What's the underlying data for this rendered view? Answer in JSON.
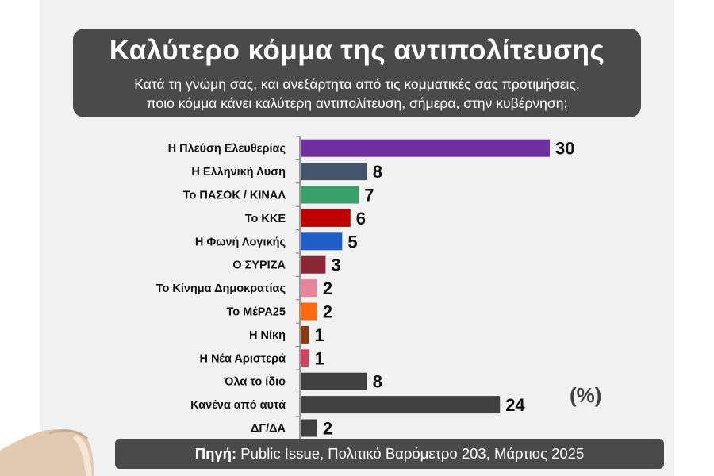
{
  "header": {
    "title": "Καλύτερο κόμμα της αντιπολίτευσης",
    "subtitle_line1": "Κατά τη γνώμη σας, και ανεξάρτητα από τις κομματικές σας προτιμήσεις,",
    "subtitle_line2": "ποιο κόμμα κάνει καλύτερη αντιπολίτευση, σήμερα, στην κυβέρνηση;"
  },
  "chart_data": {
    "type": "bar",
    "orientation": "horizontal",
    "categories": [
      "Η Πλεύση Ελευθερίας",
      "Η Ελληνική Λύση",
      "Το ΠΑΣΟΚ / ΚΙΝΑΛ",
      "Το ΚΚΕ",
      "Η Φωνή Λογικής",
      "Ο ΣΥΡΙΖΑ",
      "Το Κίνημα Δημοκρατίας",
      "Το ΜέΡΑ25",
      "Η Νίκη",
      "Η Νέα Αριστερά",
      "Όλα το ίδιο",
      "Κανένα από αυτά",
      "ΔΓ/ΔΑ"
    ],
    "values": [
      30,
      8,
      7,
      6,
      5,
      3,
      2,
      2,
      1,
      1,
      8,
      24,
      2
    ],
    "colors": [
      "#7030a0",
      "#44546a",
      "#3aa06a",
      "#c00000",
      "#1f5fc8",
      "#8b2635",
      "#e6869a",
      "#ff6a10",
      "#8b3a0e",
      "#d44060",
      "#404040",
      "#404040",
      "#404040"
    ],
    "unit_label": "(%)",
    "xlim": [
      0,
      30
    ],
    "grid": false,
    "legend": "none"
  },
  "footer": {
    "source_label": "Πηγή:",
    "source_text": " Public Issue, Πολιτικό Βαρόμετρο 203, Μάρτιος 2025"
  }
}
